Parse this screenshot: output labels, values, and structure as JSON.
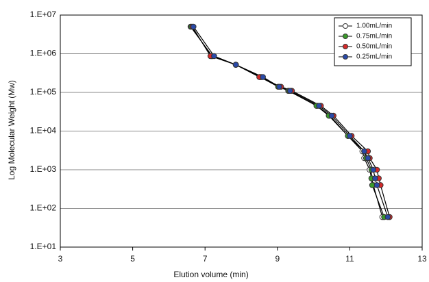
{
  "chart_data": {
    "type": "scatter-line",
    "x_label": "Elution volume (min)",
    "y_label": "Log Molecular Weight (Mw)",
    "xlim": [
      3,
      13
    ],
    "xticks": [
      3,
      5,
      7,
      9,
      11,
      13
    ],
    "ylim": [
      10,
      10000000
    ],
    "y_log": true,
    "grid": true,
    "legend": "top-right",
    "yticks": [
      {
        "value": 10,
        "label": "1.E+01"
      },
      {
        "value": 100,
        "label": "1.E+02"
      },
      {
        "value": 1000,
        "label": "1.E+03"
      },
      {
        "value": 10000,
        "label": "1.E+04"
      },
      {
        "value": 100000,
        "label": "1.E+05"
      },
      {
        "value": 1000000,
        "label": "1.E+06"
      },
      {
        "value": 10000000,
        "label": "1.E+07"
      }
    ],
    "series": [
      {
        "name": "1.00mL/min",
        "color": "#ffffff",
        "x": [
          6.6,
          7.2,
          7.85,
          8.55,
          9.05,
          9.3,
          10.1,
          10.45,
          10.95,
          11.35,
          11.4,
          11.55,
          11.6,
          11.65,
          11.9
        ],
        "values": [
          5000000,
          870000,
          520000,
          250000,
          140000,
          110000,
          45000,
          25000,
          7500,
          3000,
          2000,
          1000,
          600,
          400,
          60
        ]
      },
      {
        "name": "0.75mL/min",
        "color": "#3a9a2a",
        "x": [
          6.62,
          7.18,
          7.85,
          8.52,
          9.02,
          9.32,
          10.08,
          10.42,
          10.95,
          11.4,
          11.45,
          11.6,
          11.6,
          11.62,
          11.95
        ],
        "values": [
          5000000,
          870000,
          520000,
          250000,
          140000,
          110000,
          45000,
          25000,
          7500,
          3000,
          2000,
          1000,
          600,
          400,
          60
        ]
      },
      {
        "name": "0.50mL/min",
        "color": "#d42a2a",
        "x": [
          6.65,
          7.15,
          7.85,
          8.5,
          9.1,
          9.4,
          10.2,
          10.55,
          11.05,
          11.5,
          11.55,
          11.75,
          11.8,
          11.85,
          12.1
        ],
        "values": [
          5000000,
          870000,
          520000,
          250000,
          140000,
          110000,
          45000,
          25000,
          7500,
          3000,
          2000,
          1000,
          600,
          400,
          60
        ]
      },
      {
        "name": "0.25mL/min",
        "color": "#2a4aa8",
        "x": [
          6.68,
          7.25,
          7.85,
          8.6,
          9.05,
          9.35,
          10.15,
          10.5,
          11.0,
          11.4,
          11.5,
          11.65,
          11.7,
          11.75,
          12.05
        ],
        "values": [
          5000000,
          870000,
          520000,
          250000,
          140000,
          110000,
          45000,
          25000,
          7500,
          3000,
          2000,
          1000,
          600,
          400,
          60
        ]
      }
    ]
  }
}
